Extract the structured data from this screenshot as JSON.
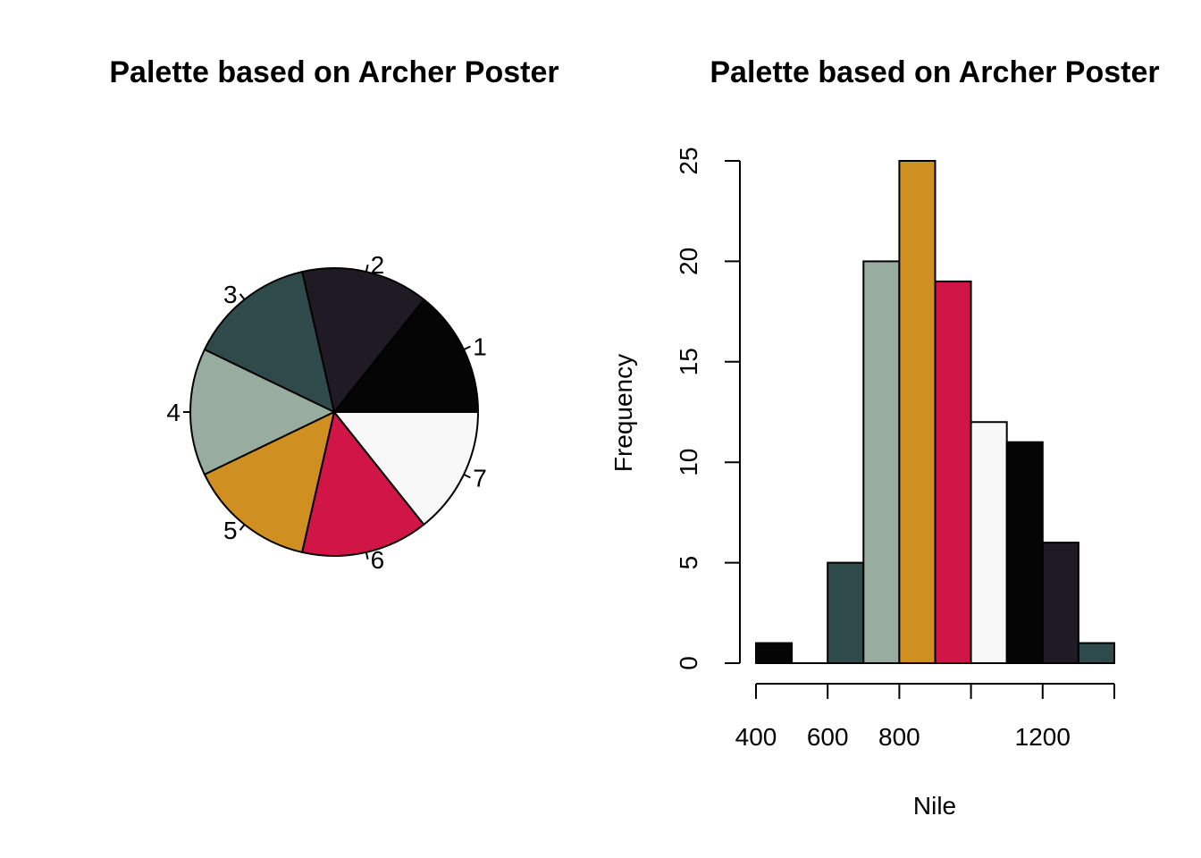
{
  "palette": {
    "c1": "#050505",
    "c2": "#201A24",
    "c3": "#2F4A4A",
    "c4": "#98ACA0",
    "c5": "#CF8F21",
    "c6": "#D11546",
    "c7": "#F8F8F8"
  },
  "chart_data": [
    {
      "type": "pie",
      "title": "Palette based on Archer Poster",
      "labels": [
        "1",
        "2",
        "3",
        "4",
        "5",
        "6",
        "7"
      ],
      "values": [
        1,
        1,
        1,
        1,
        1,
        1,
        1
      ],
      "colors": [
        "#050505",
        "#201A24",
        "#2F4A4A",
        "#98ACA0",
        "#CF8F21",
        "#D11546",
        "#F8F8F8"
      ]
    },
    {
      "type": "bar",
      "title": "Palette based on Archer Poster",
      "xlabel": "Nile",
      "ylabel": "Frequency",
      "bins": [
        [
          400,
          500
        ],
        [
          500,
          600
        ],
        [
          600,
          700
        ],
        [
          700,
          800
        ],
        [
          800,
          900
        ],
        [
          900,
          1000
        ],
        [
          1000,
          1100
        ],
        [
          1100,
          1200
        ],
        [
          1200,
          1300
        ],
        [
          1300,
          1400
        ]
      ],
      "values": [
        1,
        0,
        5,
        20,
        25,
        19,
        12,
        11,
        6,
        1
      ],
      "colors": [
        "#050505",
        "#201A24",
        "#2F4A4A",
        "#98ACA0",
        "#CF8F21",
        "#D11546",
        "#F8F8F8",
        "#050505",
        "#201A24",
        "#2F4A4A"
      ],
      "xlim": [
        400,
        1400
      ],
      "ylim": [
        0,
        25
      ],
      "xticks": [
        400,
        600,
        800,
        1000,
        1200,
        1400
      ],
      "xtick_labels": [
        "400",
        "600",
        "800",
        "",
        "1200",
        ""
      ],
      "yticks": [
        0,
        5,
        10,
        15,
        20,
        25
      ],
      "ytick_labels": [
        "0",
        "5",
        "10",
        "15",
        "20",
        "25"
      ]
    }
  ]
}
